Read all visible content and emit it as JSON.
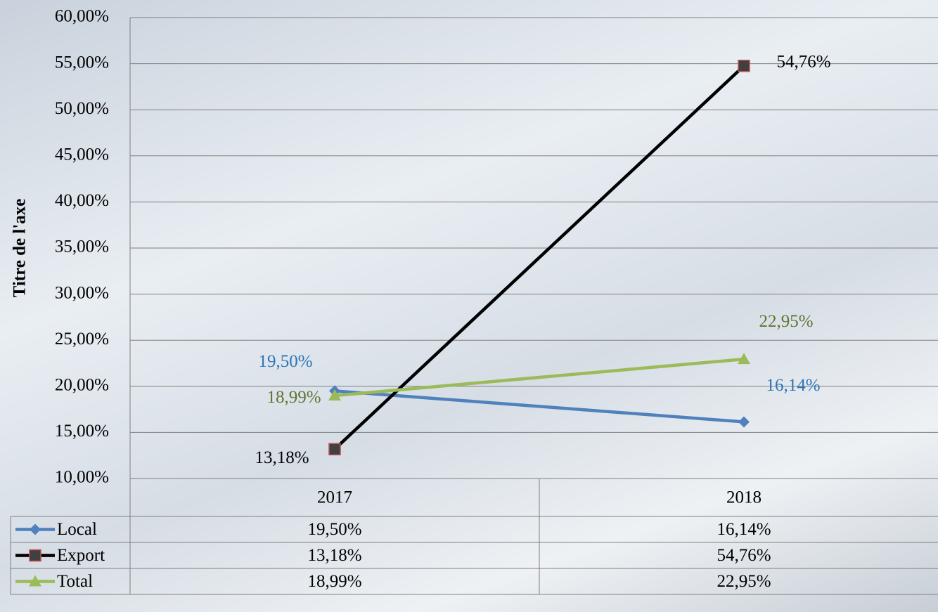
{
  "chart_data": {
    "type": "line",
    "y_axis_label": "Titre de l'axe",
    "categories": [
      "2017",
      "2018"
    ],
    "series": [
      {
        "name": "Local",
        "color": "#4f81bd",
        "marker": "diamond",
        "label_color": "#2e75b6",
        "values": [
          19.5,
          16.14
        ],
        "value_labels": [
          "19,50%",
          "16,14%"
        ]
      },
      {
        "name": "Export",
        "color": "#000000",
        "marker": "square",
        "label_color": "#000000",
        "values": [
          13.18,
          54.76
        ],
        "value_labels": [
          "13,18%",
          "54,76%"
        ]
      },
      {
        "name": "Total",
        "color": "#9bbb59",
        "marker": "triangle",
        "label_color": "#5f7530",
        "values": [
          18.99,
          22.95
        ],
        "value_labels": [
          "18,99%",
          "22,95%"
        ]
      }
    ],
    "ylim": [
      10,
      60
    ],
    "yticks": [
      {
        "value": 10,
        "label": "10,00%"
      },
      {
        "value": 15,
        "label": "15,00%"
      },
      {
        "value": 20,
        "label": "20,00%"
      },
      {
        "value": 25,
        "label": "25,00%"
      },
      {
        "value": 30,
        "label": "30,00%"
      },
      {
        "value": 35,
        "label": "35,00%"
      },
      {
        "value": 40,
        "label": "40,00%"
      },
      {
        "value": 45,
        "label": "45,00%"
      },
      {
        "value": 50,
        "label": "50,00%"
      },
      {
        "value": 55,
        "label": "55,00%"
      },
      {
        "value": 60,
        "label": "60,00%"
      }
    ],
    "grid": true,
    "data_table": true
  }
}
